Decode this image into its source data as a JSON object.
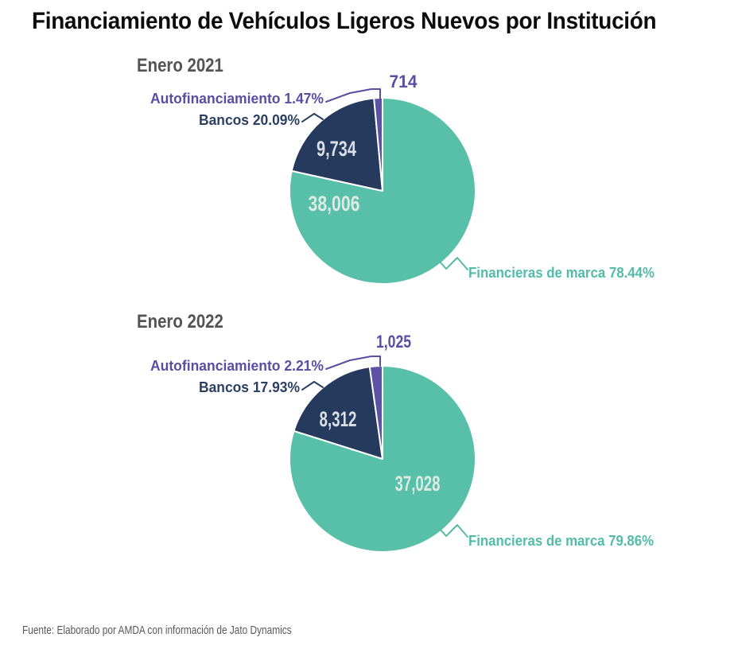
{
  "page": {
    "title": "Financiamiento de Vehículos Ligeros Nuevos por Institución",
    "source": "Fuente: Elaborado por AMDA con información de Jato Dynamics",
    "background": "#FFFFFF",
    "title_color": "#0D0D0D",
    "heading_color": "#545454",
    "source_color": "#58595A"
  },
  "chart_data": [
    {
      "type": "pie",
      "title": "Enero 2021",
      "start_angle_deg": 0,
      "direction": "clockwise",
      "legend_position": "none",
      "slices": [
        {
          "name": "Financieras de marca",
          "pct": 78.44,
          "pct_label": "78.44%",
          "value": 38006,
          "value_label": "38,006",
          "color": "#58BFA9",
          "text_color": "#53BCA8",
          "value_text_color": "#DCEAE5"
        },
        {
          "name": "Bancos",
          "pct": 20.09,
          "pct_label": "20.09%",
          "value": 9734,
          "value_label": "9,734",
          "color": "#253A5D",
          "text_color": "#2B3F63",
          "value_text_color": "#DADFE6"
        },
        {
          "name": "Autofinanciamiento",
          "pct": 1.47,
          "pct_label": "1.47%",
          "value": 714,
          "value_label": "714",
          "color": "#5D52A5",
          "text_color": "#5A4DA3",
          "value_text_color": "#5A4DA3"
        }
      ]
    },
    {
      "type": "pie",
      "title": "Enero 2022",
      "start_angle_deg": 0,
      "direction": "clockwise",
      "legend_position": "none",
      "slices": [
        {
          "name": "Financieras de marca",
          "pct": 79.86,
          "pct_label": "79.86%",
          "value": 37028,
          "value_label": "37,028",
          "color": "#58BFA9",
          "text_color": "#53BCA8",
          "value_text_color": "#DCEAE5"
        },
        {
          "name": "Bancos",
          "pct": 17.93,
          "pct_label": "17.93%",
          "value": 8312,
          "value_label": "8,312",
          "color": "#253A5D",
          "text_color": "#2B3F63",
          "value_text_color": "#DADFE6"
        },
        {
          "name": "Autofinanciamiento",
          "pct": 2.21,
          "pct_label": "2.21%",
          "value": 1025,
          "value_label": "1,025",
          "color": "#5D52A5",
          "text_color": "#5A4DA3",
          "value_text_color": "#5A4DA3"
        }
      ]
    }
  ]
}
